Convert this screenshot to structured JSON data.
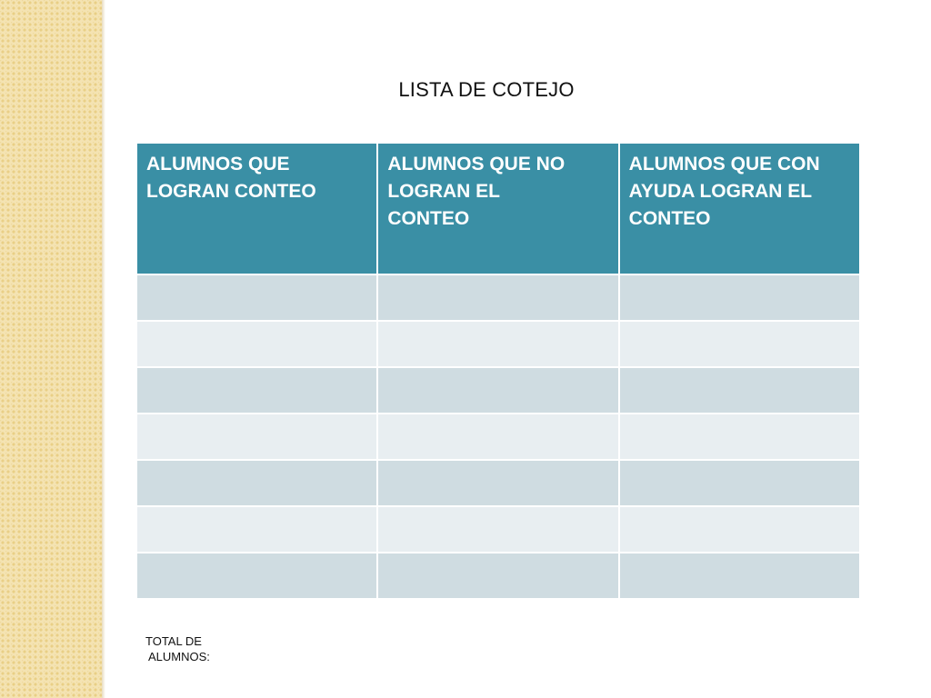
{
  "title": "LISTA DE COTEJO",
  "colors": {
    "header_bg": "#3a8fa5",
    "row_odd": "#cfdce1",
    "row_even": "#e8eef1",
    "side_strip": "#f4e3b2"
  },
  "table": {
    "headers": [
      "ALUMNOS QUE LOGRAN CONTEO",
      "ALUMNOS QUE NO LOGRAN EL CONTEO",
      "ALUMNOS QUE CON AYUDA LOGRAN EL CONTEO"
    ],
    "rows": [
      [
        "",
        "",
        ""
      ],
      [
        "",
        "",
        ""
      ],
      [
        "",
        "",
        ""
      ],
      [
        "",
        "",
        ""
      ],
      [
        "",
        "",
        ""
      ],
      [
        "",
        "",
        ""
      ],
      [
        "",
        "",
        ""
      ]
    ]
  },
  "footer": {
    "total_label_line1": "TOTAL DE",
    "total_label_line2": "ALUMNOS:"
  }
}
